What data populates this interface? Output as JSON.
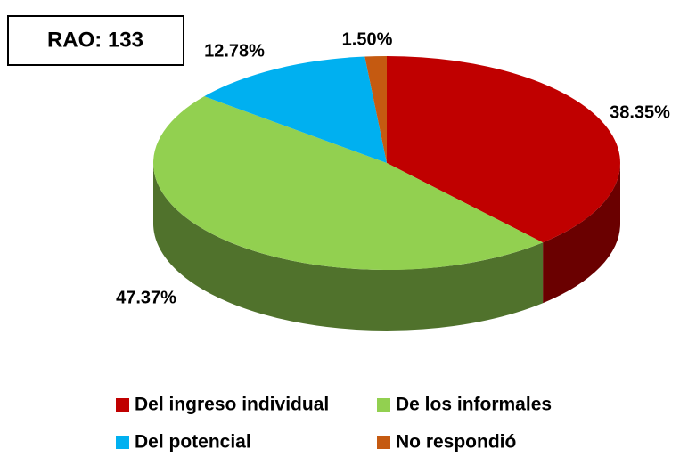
{
  "chart_data": {
    "type": "pie",
    "annotation": "RAO: 133",
    "categories": [
      "Del ingreso individual",
      "De los informales",
      "Del potencial",
      "No respondió"
    ],
    "values": [
      38.35,
      47.37,
      12.78,
      1.5
    ],
    "value_labels": [
      "38.35%",
      "47.37%",
      "12.78%",
      "1.50%"
    ],
    "colors": [
      "#c00000",
      "#92d050",
      "#00b0f0",
      "#c55a11"
    ]
  }
}
